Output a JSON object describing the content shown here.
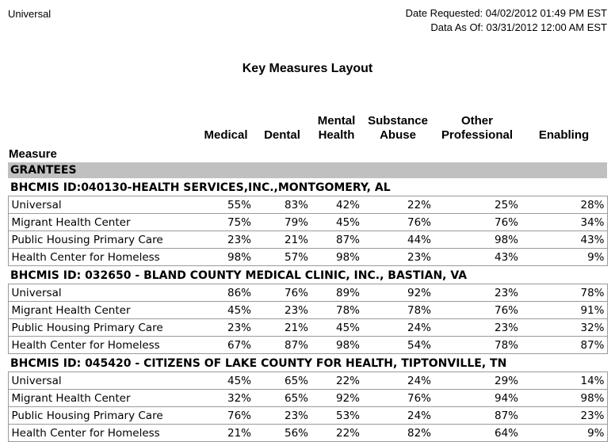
{
  "header": {
    "report_scope": "Universal",
    "date_requested_line": "Date Requested: 04/02/2012 01:49 PM EST",
    "data_as_of_line": "Data As Of: 03/31/2012 12:00 AM EST"
  },
  "title": "Key Measures Layout",
  "colors": {
    "section_band": "#c0c0c0",
    "grid_line": "#9a9a9a",
    "text": "#000000"
  },
  "table": {
    "measure_header": "Measure",
    "section_header": "GRANTEES",
    "columns": [
      "Medical",
      "Dental",
      "Mental Health",
      "Substance Abuse",
      "Other Professional",
      "Enabling"
    ],
    "groups": [
      {
        "id_line": "BHCMIS ID:040130-HEALTH SERVICES,INC.,MONTGOMERY, AL",
        "rows": [
          {
            "measure": "Universal",
            "values": [
              "55%",
              "83%",
              "42%",
              "22%",
              "25%",
              "28%"
            ]
          },
          {
            "measure": "Migrant Health Center",
            "values": [
              "75%",
              "79%",
              "45%",
              "76%",
              "76%",
              "34%"
            ]
          },
          {
            "measure": "Public Housing Primary Care",
            "values": [
              "23%",
              "21%",
              "87%",
              "44%",
              "98%",
              "43%"
            ]
          },
          {
            "measure": "Health Center for Homeless",
            "values": [
              "98%",
              "57%",
              "98%",
              "23%",
              "43%",
              "9%"
            ]
          }
        ]
      },
      {
        "id_line": "BHCMIS ID: 032650 - BLAND COUNTY MEDICAL CLINIC, INC., BASTIAN, VA",
        "rows": [
          {
            "measure": "Universal",
            "values": [
              "86%",
              "76%",
              "89%",
              "92%",
              "23%",
              "78%"
            ]
          },
          {
            "measure": "Migrant Health Center",
            "values": [
              "45%",
              "23%",
              "78%",
              "78%",
              "76%",
              "91%"
            ]
          },
          {
            "measure": "Public Housing Primary Care",
            "values": [
              "23%",
              "21%",
              "45%",
              "24%",
              "23%",
              "32%"
            ]
          },
          {
            "measure": "Health Center for Homeless",
            "values": [
              "67%",
              "87%",
              "98%",
              "54%",
              "78%",
              "87%"
            ]
          }
        ]
      },
      {
        "id_line": "BHCMIS ID: 045420 - CITIZENS OF LAKE COUNTY FOR HEALTH, TIPTONVILLE, TN",
        "rows": [
          {
            "measure": "Universal",
            "values": [
              "45%",
              "65%",
              "22%",
              "24%",
              "29%",
              "14%"
            ]
          },
          {
            "measure": "Migrant Health Center",
            "values": [
              "32%",
              "65%",
              "92%",
              "76%",
              "94%",
              "98%"
            ]
          },
          {
            "measure": "Public Housing Primary Care",
            "values": [
              "76%",
              "23%",
              "53%",
              "24%",
              "87%",
              "23%"
            ]
          },
          {
            "measure": "Health Center for Homeless",
            "values": [
              "21%",
              "56%",
              "22%",
              "82%",
              "64%",
              "9%"
            ]
          }
        ]
      }
    ]
  }
}
